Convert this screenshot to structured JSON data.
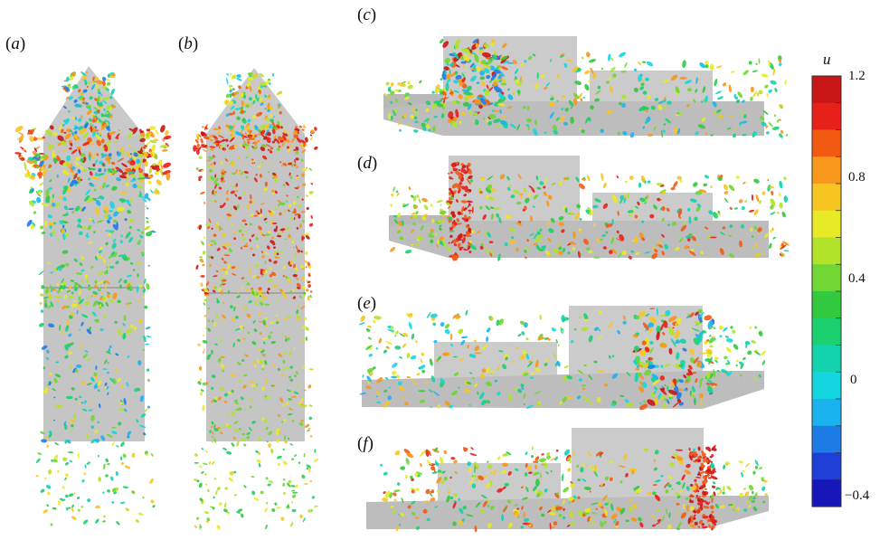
{
  "panels": [
    {
      "id": "a",
      "label": "a"
    },
    {
      "id": "b",
      "label": "b"
    },
    {
      "id": "c",
      "label": "c"
    },
    {
      "id": "d",
      "label": "d"
    },
    {
      "id": "e",
      "label": "e"
    },
    {
      "id": "f",
      "label": "f"
    }
  ],
  "colorbar": {
    "variable": "u",
    "ticks": [
      "1.2",
      "0.8",
      "0.4",
      "0",
      "−0.4"
    ],
    "colors": [
      "#c81515",
      "#e8201a",
      "#f25a12",
      "#f7971b",
      "#f7c520",
      "#e8ea25",
      "#b2e22a",
      "#6fd632",
      "#33c93f",
      "#1bd06e",
      "#12d3ad",
      "#14d6e0",
      "#19b4ef",
      "#1d7be6",
      "#1d3fd5",
      "#1616b9"
    ]
  }
}
